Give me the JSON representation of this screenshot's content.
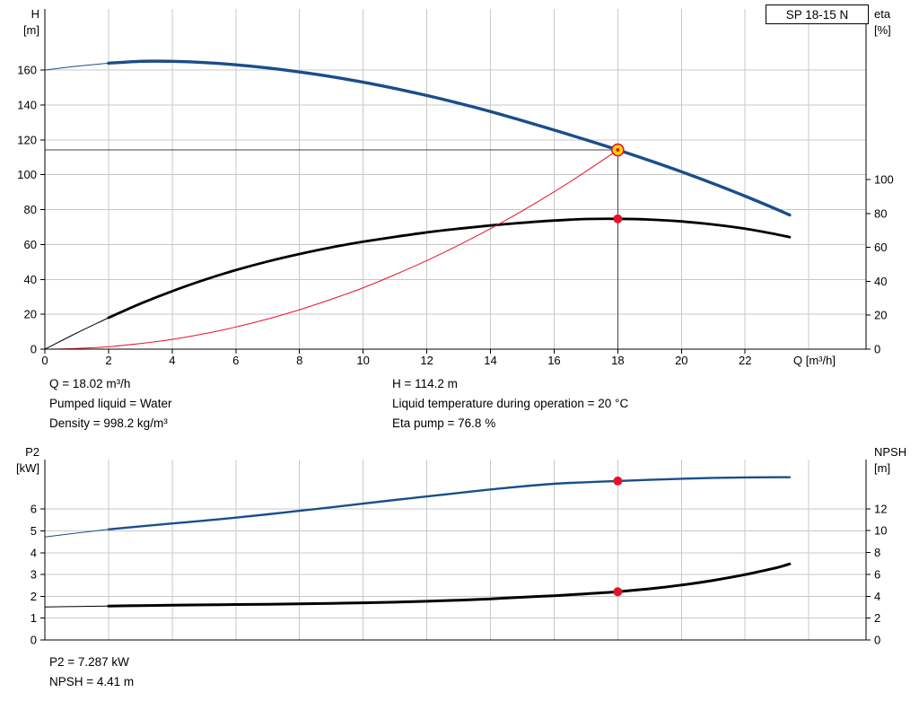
{
  "pump": {
    "type_label": "SP 18-15 N"
  },
  "results_top": {
    "col1": [
      "Q = 18.02 m³/h",
      "Pumped liquid = Water",
      "Density = 998.2 kg/m³"
    ],
    "col2": [
      "H = 114.2 m",
      "Liquid temperature during operation = 20 °C",
      "Eta pump = 76.8 %"
    ]
  },
  "results_bottom": [
    "P2 = 7.287 kW",
    "NPSH = 4.41 m"
  ],
  "colors": {
    "curve_blue": "#1a4e8a",
    "curve_black": "#000000",
    "curve_red": "#e8112d",
    "marker_yellow": "#ffd500",
    "grid": "#c8c8c8",
    "crosshair": "#444444",
    "axis": "#000000"
  },
  "chart_data": [
    {
      "name": "hq-chart",
      "type": "line",
      "title": "SP 18-15 N",
      "x": {
        "label": "Q [m³/h]",
        "min": 0,
        "max": 25.8,
        "grid_step": 2,
        "ticks": [
          0,
          2,
          4,
          6,
          8,
          10,
          12,
          14,
          16,
          18,
          20,
          22
        ]
      },
      "left_axis": {
        "label": [
          "H",
          "[m]"
        ],
        "min": 0,
        "max": 195,
        "ticks": [
          0,
          20,
          40,
          60,
          80,
          100,
          120,
          140,
          160
        ]
      },
      "right_axis": {
        "label": [
          "eta",
          "[%]"
        ],
        "min": 0,
        "max": 200.5,
        "ticks": [
          0,
          20,
          40,
          60,
          80,
          100
        ]
      },
      "series": [
        {
          "name": "head-curve",
          "color": "#1a4e8a",
          "width": 3.4,
          "axis": "left",
          "thin_end": 2,
          "points": [
            [
              0,
              160
            ],
            [
              1,
              162.2
            ],
            [
              2,
              163.9
            ],
            [
              3,
              165
            ],
            [
              4,
              165
            ],
            [
              5,
              164.3
            ],
            [
              6,
              163
            ],
            [
              7,
              161.2
            ],
            [
              8,
              158.9
            ],
            [
              9,
              156.2
            ],
            [
              10,
              153
            ],
            [
              11,
              149.4
            ],
            [
              12,
              145.4
            ],
            [
              13,
              141
            ],
            [
              14,
              136.2
            ],
            [
              15,
              131
            ],
            [
              16,
              125.6
            ],
            [
              17,
              120
            ],
            [
              18,
              114.2
            ],
            [
              19,
              108.1
            ],
            [
              20,
              101.7
            ],
            [
              21,
              94.9
            ],
            [
              22,
              87.7
            ],
            [
              23,
              80.1
            ],
            [
              23.4,
              76.9
            ]
          ]
        },
        {
          "name": "eta-curve",
          "color": "#000000",
          "width": 2.8,
          "axis": "right",
          "thin_end": 2,
          "points": [
            [
              0,
              0
            ],
            [
              1,
              9.5
            ],
            [
              2,
              18.5
            ],
            [
              3,
              26.8
            ],
            [
              4,
              34.2
            ],
            [
              5,
              40.8
            ],
            [
              6,
              46.6
            ],
            [
              7,
              51.7
            ],
            [
              8,
              56.1
            ],
            [
              9,
              60
            ],
            [
              10,
              63.3
            ],
            [
              11,
              66.2
            ],
            [
              12,
              68.8
            ],
            [
              13,
              71
            ],
            [
              14,
              72.9
            ],
            [
              15,
              74.5
            ],
            [
              16,
              75.8
            ],
            [
              17,
              76.7
            ],
            [
              18,
              76.8
            ],
            [
              19,
              76.4
            ],
            [
              20,
              75.3
            ],
            [
              21,
              73.5
            ],
            [
              22,
              71
            ],
            [
              23,
              67.6
            ],
            [
              23.4,
              66
            ]
          ]
        },
        {
          "name": "system-curve",
          "color": "#e8112d",
          "width": 1,
          "axis": "left",
          "thin_end": null,
          "points": [
            [
              0,
              0
            ],
            [
              1,
              0.4
            ],
            [
              2,
              1.4
            ],
            [
              3,
              3.2
            ],
            [
              4,
              5.6
            ],
            [
              5,
              8.8
            ],
            [
              6,
              12.7
            ],
            [
              7,
              17.3
            ],
            [
              8,
              22.6
            ],
            [
              9,
              28.6
            ],
            [
              10,
              35.2
            ],
            [
              11,
              42.7
            ],
            [
              12,
              50.8
            ],
            [
              13,
              59.6
            ],
            [
              14,
              69.1
            ],
            [
              15,
              79.3
            ],
            [
              16,
              90.2
            ],
            [
              17,
              101.9
            ],
            [
              18,
              114.2
            ]
          ]
        }
      ],
      "markers": [
        {
          "name": "duty-point-marker",
          "x": 18,
          "v": 114.2,
          "axis": "left",
          "r": 6.5,
          "fill": "#ffd500",
          "stroke": "#e8112d",
          "sw": 1.6,
          "center": "#e8112d"
        },
        {
          "name": "eta-point-marker",
          "x": 18,
          "v": 76.8,
          "axis": "right",
          "r": 5,
          "fill": "#e8112d",
          "stroke": "none",
          "sw": 0
        }
      ],
      "crosshair": {
        "x": 18,
        "v": 114.2,
        "axis": "left"
      }
    },
    {
      "name": "p2-npsh-chart",
      "type": "line",
      "title": "",
      "x": {
        "label": "",
        "min": 0,
        "max": 25.8,
        "grid_step": 2,
        "ticks": []
      },
      "left_axis": {
        "label": [
          "P2",
          "[kW]"
        ],
        "min": 0,
        "max": 8.27,
        "ticks": [
          0,
          1,
          2,
          3,
          4,
          5,
          6
        ]
      },
      "right_axis": {
        "label": [
          "NPSH",
          "[m]"
        ],
        "min": 0,
        "max": 16.5,
        "ticks": [
          0,
          2,
          4,
          6,
          8,
          10,
          12
        ]
      },
      "series": [
        {
          "name": "p2-curve",
          "color": "#1a4e8a",
          "width": 2.4,
          "axis": "left",
          "thin_end": 2,
          "points": [
            [
              0,
              4.72
            ],
            [
              1,
              4.9
            ],
            [
              2,
              5.07
            ],
            [
              3,
              5.21
            ],
            [
              4,
              5.34
            ],
            [
              5,
              5.47
            ],
            [
              6,
              5.61
            ],
            [
              7,
              5.76
            ],
            [
              8,
              5.92
            ],
            [
              9,
              6.08
            ],
            [
              10,
              6.25
            ],
            [
              11,
              6.42
            ],
            [
              12,
              6.58
            ],
            [
              13,
              6.74
            ],
            [
              14,
              6.9
            ],
            [
              15,
              7.04
            ],
            [
              16,
              7.16
            ],
            [
              17,
              7.23
            ],
            [
              18,
              7.287
            ],
            [
              19,
              7.34
            ],
            [
              20,
              7.39
            ],
            [
              21,
              7.43
            ],
            [
              22,
              7.45
            ],
            [
              23,
              7.46
            ],
            [
              23.4,
              7.46
            ]
          ]
        },
        {
          "name": "npsh-curve",
          "color": "#000000",
          "width": 3,
          "axis": "right",
          "thin_end": 2,
          "points": [
            [
              0,
              3.02
            ],
            [
              1,
              3.06
            ],
            [
              2,
              3.1
            ],
            [
              3,
              3.14
            ],
            [
              4,
              3.18
            ],
            [
              5,
              3.21
            ],
            [
              6,
              3.24
            ],
            [
              7,
              3.27
            ],
            [
              8,
              3.31
            ],
            [
              9,
              3.35
            ],
            [
              10,
              3.4
            ],
            [
              11,
              3.46
            ],
            [
              12,
              3.54
            ],
            [
              13,
              3.64
            ],
            [
              14,
              3.76
            ],
            [
              15,
              3.91
            ],
            [
              16,
              4.05
            ],
            [
              17,
              4.22
            ],
            [
              18,
              4.41
            ],
            [
              19,
              4.68
            ],
            [
              20,
              5.02
            ],
            [
              21,
              5.45
            ],
            [
              22,
              5.98
            ],
            [
              23,
              6.62
            ],
            [
              23.4,
              6.95
            ]
          ]
        }
      ],
      "markers": [
        {
          "name": "p2-point-marker",
          "x": 18,
          "v": 7.287,
          "axis": "left",
          "r": 5,
          "fill": "#e8112d",
          "stroke": "none",
          "sw": 0
        },
        {
          "name": "npsh-point-marker",
          "x": 18,
          "v": 4.41,
          "axis": "right",
          "r": 5,
          "fill": "#e8112d",
          "stroke": "none",
          "sw": 0
        }
      ],
      "crosshair": null
    }
  ]
}
